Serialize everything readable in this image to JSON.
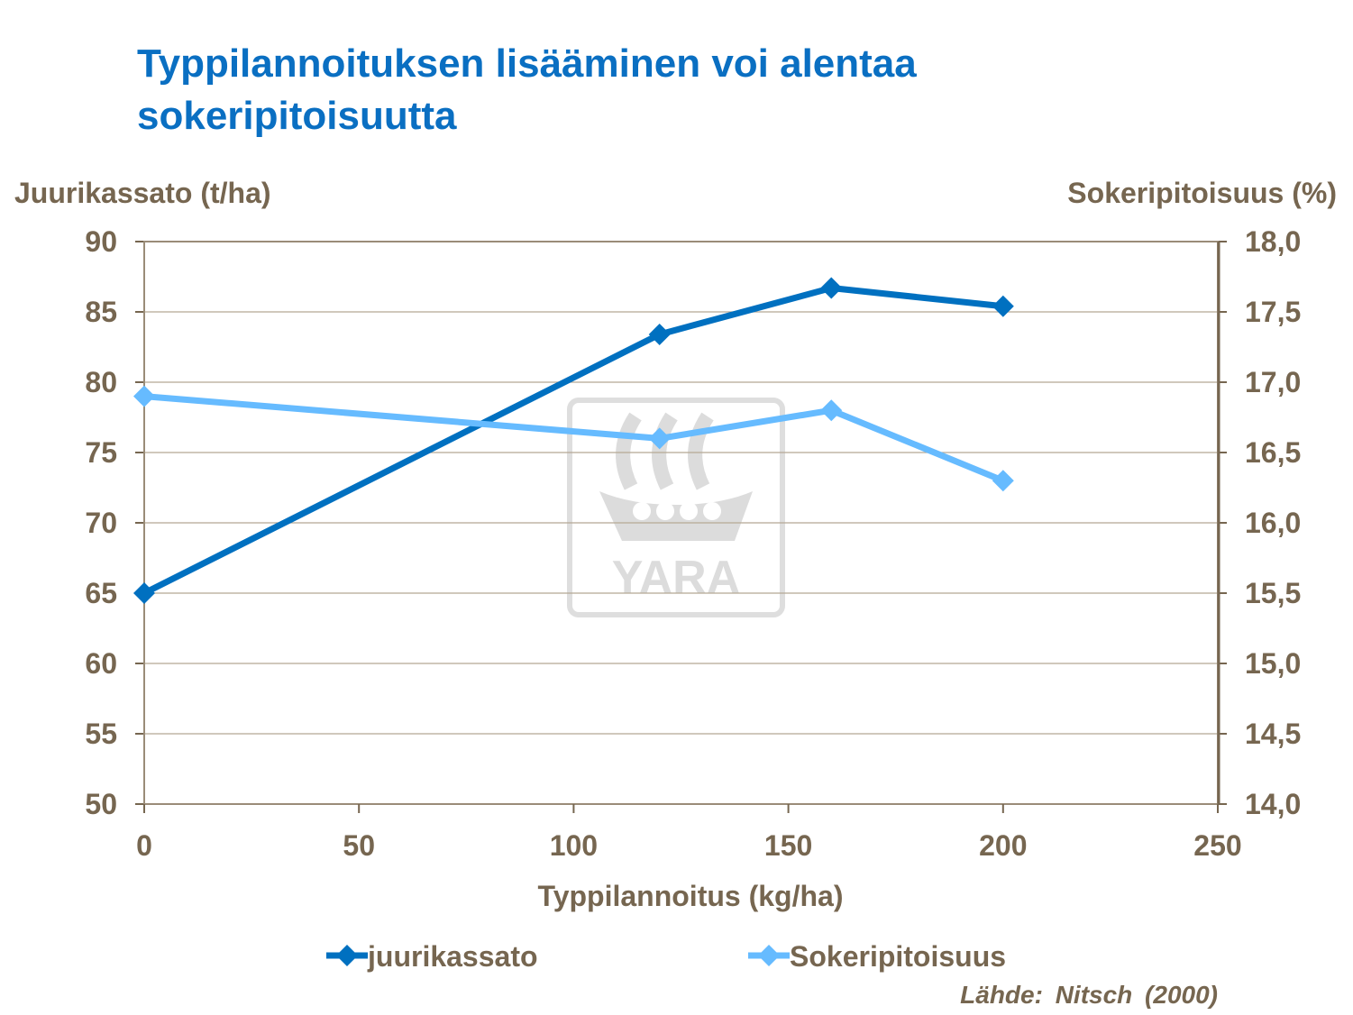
{
  "title": "Typpilannoituksen lisääminen voi alentaa sokeripitoisuutta",
  "source": "Lähde: Nitsch (2000)",
  "watermark": {
    "logo_text": "YARA",
    "color": "#d9d9d9"
  },
  "chart_data": {
    "type": "line",
    "title": "Typpilannoituksen lisääminen voi alentaa sokeripitoisuutta",
    "xlabel": "Typpilannoitus (kg/ha)",
    "ylabel_left": "Juurikassato (t/ha)",
    "ylabel_right": "Sokeripitoisuus (%)",
    "xlim": [
      0,
      250
    ],
    "ylim_left": [
      50,
      90
    ],
    "ylim_right": [
      14.0,
      18.0
    ],
    "x_ticks": [
      "0",
      "50",
      "100",
      "150",
      "200",
      "250"
    ],
    "y_left_ticks": [
      "50",
      "55",
      "60",
      "65",
      "70",
      "75",
      "80",
      "85",
      "90"
    ],
    "y_right_ticks": [
      "14,0",
      "14,5",
      "15,0",
      "15,5",
      "16,0",
      "16,5",
      "17,0",
      "17,5",
      "18,0"
    ],
    "grid": true,
    "legend_position": "bottom",
    "series": [
      {
        "name": "juurikassato",
        "axis": "left",
        "color": "#0070c0",
        "x": [
          0,
          120,
          160,
          200
        ],
        "y": [
          65.0,
          83.4,
          86.7,
          85.4
        ]
      },
      {
        "name": "Sokeripitoisuus",
        "axis": "right",
        "color": "#66bbff",
        "x": [
          0,
          120,
          160,
          200
        ],
        "y": [
          16.9,
          16.6,
          16.8,
          16.3
        ]
      }
    ]
  }
}
